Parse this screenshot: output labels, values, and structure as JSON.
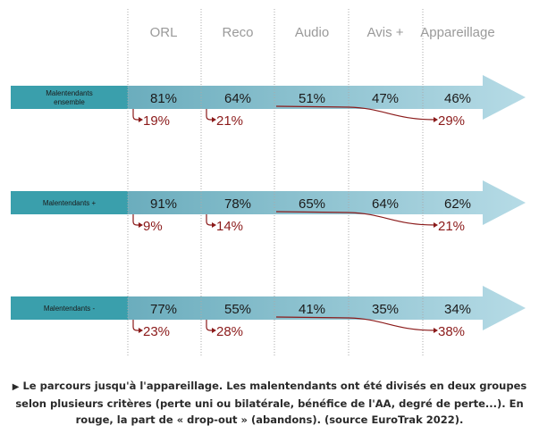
{
  "chart_data": {
    "type": "table",
    "stages": [
      "ORL",
      "Reco",
      "Audio",
      "Avis +",
      "Appareillage"
    ],
    "groups": [
      {
        "name": "Malentendants ensemble",
        "name_lines": [
          "Malentendants",
          "ensemble"
        ],
        "values": [
          "81%",
          "64%",
          "51%",
          "47%",
          "46%"
        ],
        "dropouts": [
          {
            "value": "19%",
            "from_stage": 0,
            "to_stage": 0
          },
          {
            "value": "21%",
            "from_stage": 1,
            "to_stage": 1
          },
          {
            "value": "29%",
            "from_stage": 2,
            "to_stage": 4
          }
        ]
      },
      {
        "name": "Malentendants +",
        "name_lines": [
          "Malentendants +"
        ],
        "values": [
          "91%",
          "78%",
          "65%",
          "64%",
          "62%"
        ],
        "dropouts": [
          {
            "value": "9%",
            "from_stage": 0,
            "to_stage": 0
          },
          {
            "value": "14%",
            "from_stage": 1,
            "to_stage": 1
          },
          {
            "value": "21%",
            "from_stage": 2,
            "to_stage": 4
          }
        ]
      },
      {
        "name": "Malentendants -",
        "name_lines": [
          "Malentendants -"
        ],
        "values": [
          "77%",
          "55%",
          "41%",
          "35%",
          "34%"
        ],
        "dropouts": [
          {
            "value": "23%",
            "from_stage": 0,
            "to_stage": 0
          },
          {
            "value": "28%",
            "from_stage": 1,
            "to_stage": 1
          },
          {
            "value": "38%",
            "from_stage": 2,
            "to_stage": 4
          }
        ]
      }
    ]
  },
  "caption": {
    "marker": "▶",
    "text": "Le parcours jusqu'à l'appareillage. Les malentendants ont été divisés en deux groupes selon plusieurs critères (perte uni ou bilatérale, bénéfice de l'AA, degré de perte...). En rouge, la part de « drop-out » (abandons). (source EuroTrak 2022)."
  },
  "colors": {
    "label_box": "#3a9fac",
    "arrow_start": "#6badbd",
    "arrow_end": "#b6dbe6",
    "dropout": "#8b1a1a",
    "header_text": "#9a9a9a",
    "divider": "#aaaaaa"
  }
}
